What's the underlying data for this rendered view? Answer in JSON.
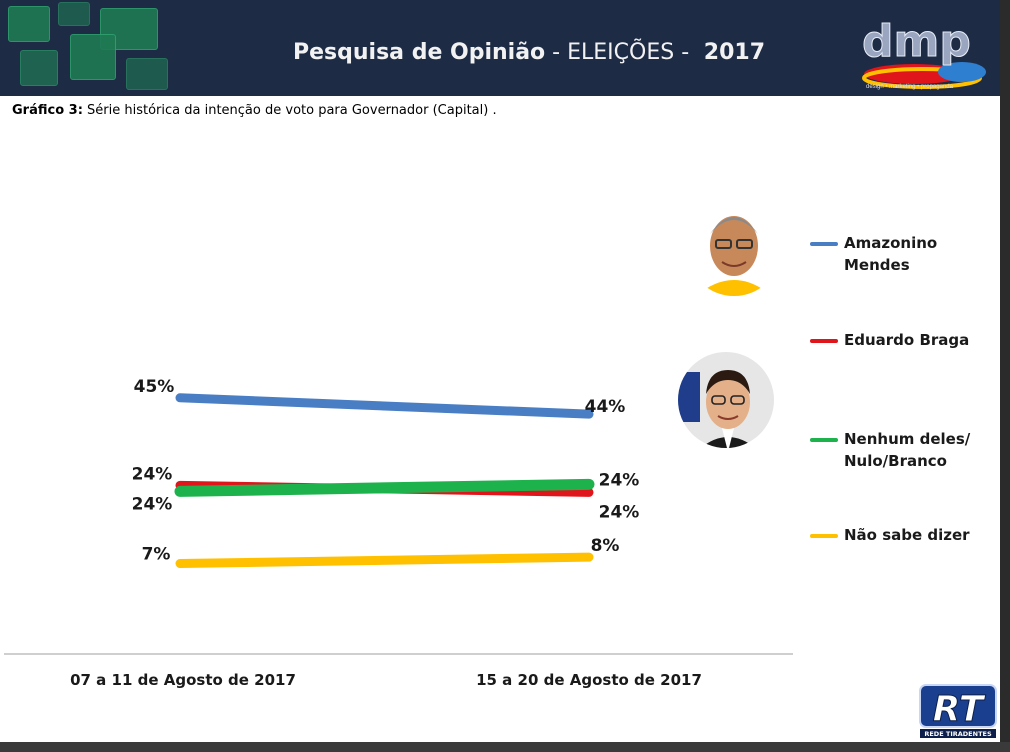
{
  "header": {
    "title_bold": "Pesquisa de Opinião",
    "title_light": " - ELEIÇÕES - ",
    "year": " 2017",
    "logo_text": "dmp",
    "logo_tagline": "design • marketing • propaganda"
  },
  "caption": {
    "label": "Gráfico 3:",
    "text": "  Série histórica da intenção de voto para Governador (Capital) ."
  },
  "colors": {
    "amazonino": "#4a7ec4",
    "eduardo": "#e0141b",
    "nenhum": "#1eb24c",
    "nao_sabe": "#ffc000",
    "header_bg": "#1d2b45"
  },
  "chart_data": {
    "type": "line",
    "categories": [
      "07 a 11 de Agosto de 2017",
      "15 a 20 de Agosto de 2017"
    ],
    "series": [
      {
        "name": "Amazonino Mendes",
        "values": [
          45,
          44
        ],
        "labels": [
          "45%",
          "44%"
        ]
      },
      {
        "name": "Eduardo Braga",
        "values": [
          24,
          24
        ],
        "labels": [
          "24%",
          "24%"
        ]
      },
      {
        "name": "Nenhum deles/ Nulo/Branco",
        "values": [
          24,
          24
        ],
        "labels": [
          "24%",
          "24%"
        ]
      },
      {
        "name": "Não sabe dizer",
        "values": [
          7,
          8
        ],
        "labels": [
          "7%",
          "8%"
        ]
      }
    ],
    "legend_position": "right",
    "grid": false
  },
  "legend": {
    "amazonino_line1": "Amazonino",
    "amazonino_line2": "Mendes",
    "eduardo": "Eduardo Braga",
    "nenhum_line1": "Nenhum deles/",
    "nenhum_line2": "Nulo/Branco",
    "nao_sabe": "Não sabe dizer"
  },
  "icons": {
    "candidate1": "candidate-photo-icon",
    "candidate2": "candidate-photo-icon",
    "rt_logo": "rede-tiradentes-logo",
    "rt_logo_text": "RT",
    "rt_logo_caption": "REDE TIRADENTES"
  }
}
